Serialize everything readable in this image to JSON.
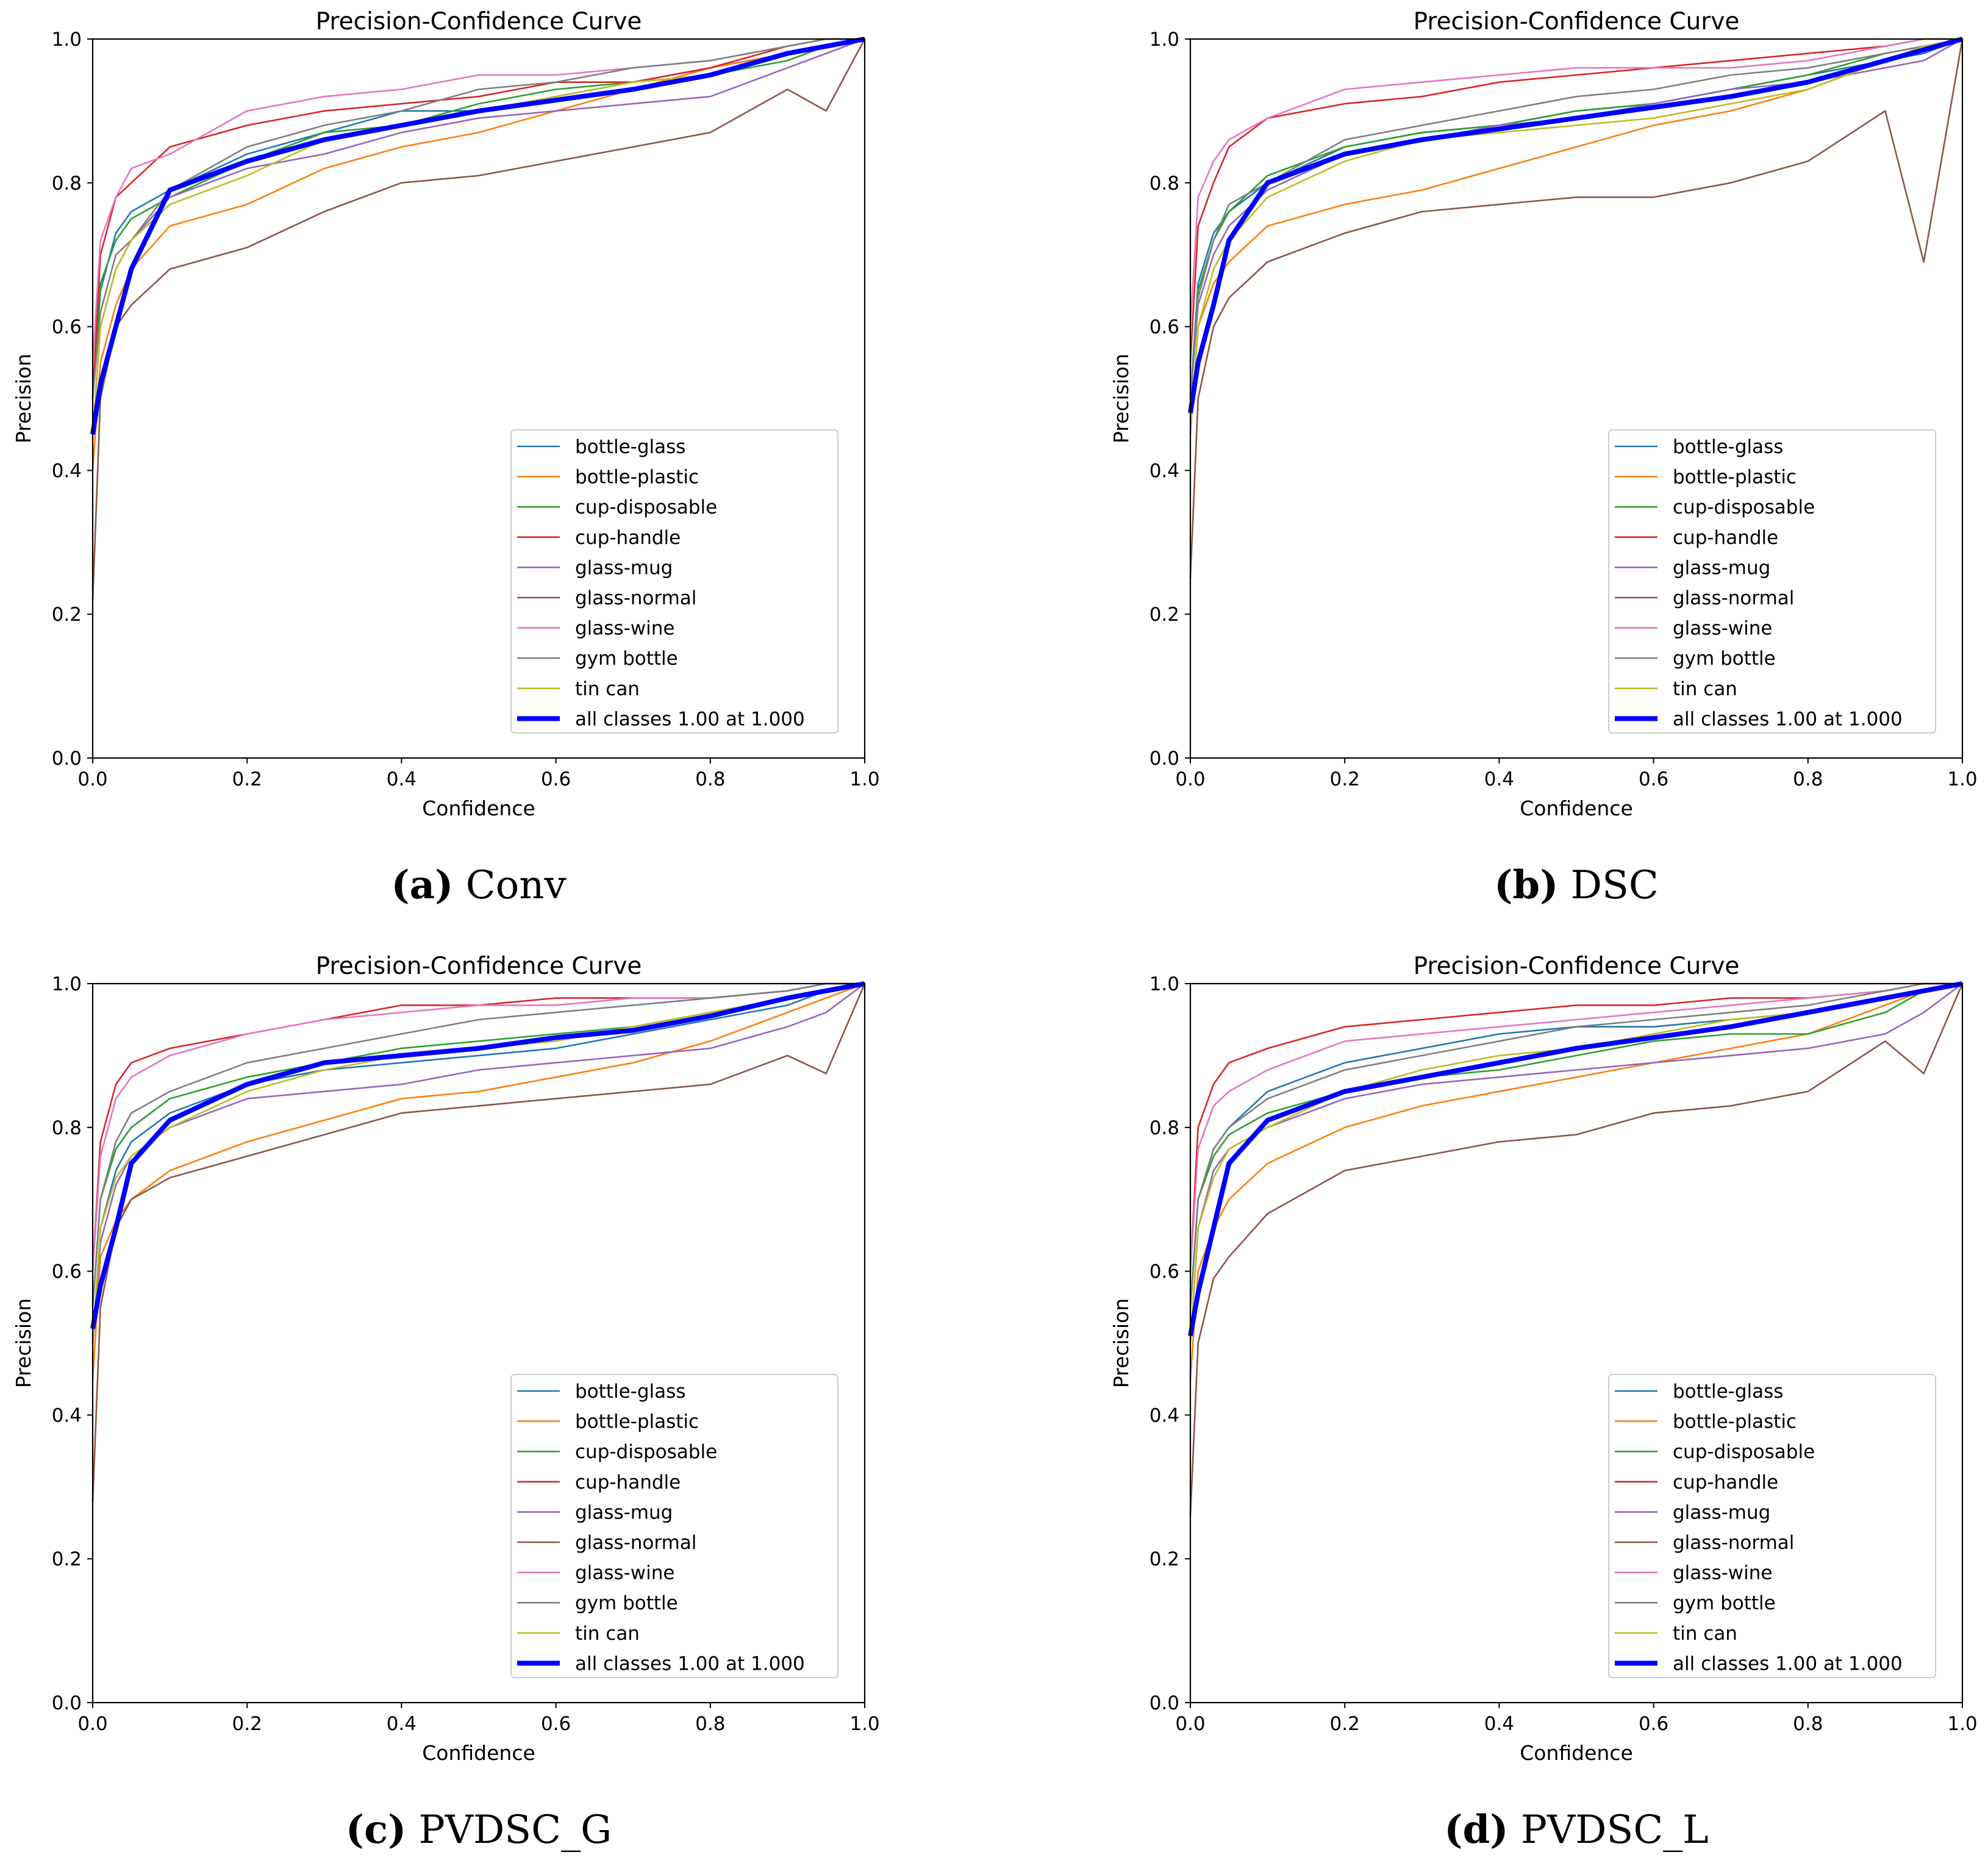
{
  "chart_data": {
    "type": "line",
    "legend_placement": "lower-right",
    "x": [
      0,
      0.01,
      0.03,
      0.05,
      0.1,
      0.2,
      0.3,
      0.4,
      0.5,
      0.6,
      0.7,
      0.8,
      0.9,
      0.95,
      1.0
    ],
    "xticks": [
      "0.0",
      "0.2",
      "0.4",
      "0.6",
      "0.8",
      "1.0"
    ],
    "yticks": [
      "0.0",
      "0.2",
      "0.4",
      "0.6",
      "0.8",
      "1.0"
    ],
    "colors": {
      "bottle-glass": "#1f77b4",
      "bottle-plastic": "#ff7f0e",
      "cup-disposable": "#2ca02c",
      "cup-handle": "#d62728",
      "glass-mug": "#9467bd",
      "glass-normal": "#8c564b",
      "glass-wine": "#e377c2",
      "gym bottle": "#7f7f7f",
      "tin can": "#bcbd22",
      "all classes 1.00 at 1.000": "#0000ff"
    },
    "panels": [
      {
        "title": "Precision-Confidence Curve",
        "xlabel": "Confidence",
        "ylabel": "Precision",
        "xlim": [
          0,
          1
        ],
        "ylim": [
          0,
          1
        ],
        "caption_letter": "(a)",
        "caption_label": "Conv",
        "series": [
          {
            "name": "bottle-glass",
            "values": [
              0.5,
              0.65,
              0.73,
              0.76,
              0.79,
              0.84,
              0.87,
              0.9,
              0.9,
              0.92,
              0.94,
              0.96,
              0.98,
              0.99,
              1.0
            ]
          },
          {
            "name": "bottle-plastic",
            "values": [
              0.4,
              0.55,
              0.63,
              0.68,
              0.74,
              0.77,
              0.82,
              0.85,
              0.87,
              0.9,
              0.93,
              0.96,
              0.98,
              0.99,
              1.0
            ]
          },
          {
            "name": "cup-disposable",
            "values": [
              0.5,
              0.66,
              0.72,
              0.75,
              0.78,
              0.83,
              0.87,
              0.88,
              0.91,
              0.93,
              0.94,
              0.95,
              0.97,
              0.99,
              1.0
            ]
          },
          {
            "name": "cup-handle",
            "values": [
              0.5,
              0.7,
              0.78,
              0.8,
              0.85,
              0.88,
              0.9,
              0.91,
              0.92,
              0.94,
              0.94,
              0.96,
              0.99,
              1.0,
              1.0
            ]
          },
          {
            "name": "glass-mug",
            "values": [
              0.45,
              0.6,
              0.68,
              0.72,
              0.78,
              0.82,
              0.84,
              0.87,
              0.89,
              0.9,
              0.91,
              0.92,
              0.96,
              0.98,
              1.0
            ]
          },
          {
            "name": "glass-normal",
            "values": [
              0.22,
              0.5,
              0.6,
              0.63,
              0.68,
              0.71,
              0.76,
              0.8,
              0.81,
              0.83,
              0.85,
              0.87,
              0.93,
              0.9,
              1.0
            ]
          },
          {
            "name": "glass-wine",
            "values": [
              0.55,
              0.72,
              0.78,
              0.82,
              0.84,
              0.9,
              0.92,
              0.93,
              0.95,
              0.95,
              0.96,
              0.97,
              0.99,
              1.0,
              1.0
            ]
          },
          {
            "name": "gym bottle",
            "values": [
              0.5,
              0.62,
              0.7,
              0.72,
              0.79,
              0.85,
              0.88,
              0.9,
              0.93,
              0.94,
              0.96,
              0.97,
              0.99,
              1.0,
              1.0
            ]
          },
          {
            "name": "tin can",
            "values": [
              0.45,
              0.6,
              0.68,
              0.72,
              0.77,
              0.81,
              0.86,
              0.88,
              0.9,
              0.92,
              0.94,
              0.95,
              0.98,
              0.99,
              1.0
            ]
          },
          {
            "name": "all classes 1.00 at 1.000",
            "values": [
              0.45,
              0.52,
              0.6,
              0.68,
              0.79,
              0.83,
              0.86,
              0.88,
              0.9,
              0.915,
              0.93,
              0.95,
              0.98,
              0.99,
              1.0
            ]
          }
        ]
      },
      {
        "title": "Precision-Confidence Curve",
        "xlabel": "Confidence",
        "ylabel": "Precision",
        "xlim": [
          0,
          1
        ],
        "ylim": [
          0,
          1
        ],
        "caption_letter": "(b)",
        "caption_label": "DSC",
        "series": [
          {
            "name": "bottle-glass",
            "values": [
              0.5,
              0.66,
              0.73,
              0.76,
              0.8,
              0.85,
              0.87,
              0.88,
              0.9,
              0.91,
              0.93,
              0.95,
              0.97,
              0.98,
              1.0
            ]
          },
          {
            "name": "bottle-plastic",
            "values": [
              0.45,
              0.6,
              0.66,
              0.69,
              0.74,
              0.77,
              0.79,
              0.82,
              0.85,
              0.88,
              0.9,
              0.93,
              0.97,
              0.99,
              1.0
            ]
          },
          {
            "name": "cup-disposable",
            "values": [
              0.5,
              0.65,
              0.72,
              0.76,
              0.81,
              0.85,
              0.87,
              0.88,
              0.9,
              0.91,
              0.93,
              0.95,
              0.98,
              0.99,
              1.0
            ]
          },
          {
            "name": "cup-handle",
            "values": [
              0.55,
              0.74,
              0.8,
              0.85,
              0.89,
              0.91,
              0.92,
              0.94,
              0.95,
              0.96,
              0.97,
              0.98,
              0.99,
              1.0,
              1.0
            ]
          },
          {
            "name": "glass-mug",
            "values": [
              0.5,
              0.63,
              0.7,
              0.74,
              0.79,
              0.84,
              0.86,
              0.88,
              0.89,
              0.91,
              0.93,
              0.94,
              0.96,
              0.97,
              1.0
            ]
          },
          {
            "name": "glass-normal",
            "values": [
              0.25,
              0.5,
              0.6,
              0.64,
              0.69,
              0.73,
              0.76,
              0.77,
              0.78,
              0.78,
              0.8,
              0.83,
              0.9,
              0.69,
              1.0
            ]
          },
          {
            "name": "glass-wine",
            "values": [
              0.6,
              0.78,
              0.83,
              0.86,
              0.89,
              0.93,
              0.94,
              0.95,
              0.96,
              0.96,
              0.96,
              0.97,
              0.99,
              1.0,
              1.0
            ]
          },
          {
            "name": "gym bottle",
            "values": [
              0.5,
              0.64,
              0.72,
              0.77,
              0.8,
              0.86,
              0.88,
              0.9,
              0.92,
              0.93,
              0.95,
              0.96,
              0.98,
              0.99,
              1.0
            ]
          },
          {
            "name": "tin can",
            "values": [
              0.45,
              0.6,
              0.68,
              0.72,
              0.78,
              0.83,
              0.86,
              0.87,
              0.88,
              0.89,
              0.91,
              0.93,
              0.97,
              0.99,
              1.0
            ]
          },
          {
            "name": "all classes 1.00 at 1.000",
            "values": [
              0.48,
              0.55,
              0.63,
              0.72,
              0.8,
              0.84,
              0.86,
              0.875,
              0.89,
              0.905,
              0.92,
              0.94,
              0.97,
              0.985,
              1.0
            ]
          }
        ]
      },
      {
        "title": "Precision-Confidence Curve",
        "xlabel": "Confidence",
        "ylabel": "Precision",
        "xlim": [
          0,
          1
        ],
        "ylim": [
          0,
          1
        ],
        "caption_letter": "(c)",
        "caption_label": "PVDSC_G",
        "series": [
          {
            "name": "bottle-glass",
            "values": [
              0.5,
              0.66,
              0.74,
              0.78,
              0.82,
              0.86,
              0.88,
              0.89,
              0.9,
              0.91,
              0.93,
              0.95,
              0.97,
              0.99,
              1.0
            ]
          },
          {
            "name": "bottle-plastic",
            "values": [
              0.45,
              0.62,
              0.67,
              0.7,
              0.74,
              0.78,
              0.81,
              0.84,
              0.85,
              0.87,
              0.89,
              0.92,
              0.96,
              0.98,
              1.0
            ]
          },
          {
            "name": "cup-disposable",
            "values": [
              0.55,
              0.7,
              0.77,
              0.8,
              0.84,
              0.87,
              0.89,
              0.91,
              0.92,
              0.93,
              0.94,
              0.96,
              0.98,
              0.99,
              1.0
            ]
          },
          {
            "name": "cup-handle",
            "values": [
              0.6,
              0.78,
              0.86,
              0.89,
              0.91,
              0.93,
              0.95,
              0.97,
              0.97,
              0.98,
              0.98,
              0.98,
              0.99,
              1.0,
              1.0
            ]
          },
          {
            "name": "glass-mug",
            "values": [
              0.5,
              0.64,
              0.72,
              0.76,
              0.8,
              0.84,
              0.85,
              0.86,
              0.88,
              0.89,
              0.9,
              0.91,
              0.94,
              0.96,
              1.0
            ]
          },
          {
            "name": "glass-normal",
            "values": [
              0.28,
              0.55,
              0.66,
              0.7,
              0.73,
              0.76,
              0.79,
              0.82,
              0.83,
              0.84,
              0.85,
              0.86,
              0.9,
              0.875,
              1.0
            ]
          },
          {
            "name": "glass-wine",
            "values": [
              0.6,
              0.76,
              0.84,
              0.87,
              0.9,
              0.93,
              0.95,
              0.96,
              0.97,
              0.97,
              0.98,
              0.98,
              0.99,
              1.0,
              1.0
            ]
          },
          {
            "name": "gym bottle",
            "values": [
              0.55,
              0.7,
              0.78,
              0.82,
              0.85,
              0.89,
              0.91,
              0.93,
              0.95,
              0.96,
              0.97,
              0.98,
              0.99,
              1.0,
              1.0
            ]
          },
          {
            "name": "tin can",
            "values": [
              0.5,
              0.66,
              0.73,
              0.76,
              0.8,
              0.85,
              0.88,
              0.9,
              0.91,
              0.92,
              0.94,
              0.96,
              0.98,
              0.99,
              1.0
            ]
          },
          {
            "name": "all classes 1.00 at 1.000",
            "values": [
              0.52,
              0.58,
              0.66,
              0.75,
              0.81,
              0.86,
              0.89,
              0.9,
              0.91,
              0.925,
              0.935,
              0.955,
              0.98,
              0.99,
              1.0
            ]
          }
        ]
      },
      {
        "title": "Precision-Confidence Curve",
        "xlabel": "Confidence",
        "ylabel": "Precision",
        "xlim": [
          0,
          1
        ],
        "ylim": [
          0,
          1
        ],
        "caption_letter": "(d)",
        "caption_label": "PVDSC_L",
        "series": [
          {
            "name": "bottle-glass",
            "values": [
              0.55,
              0.7,
              0.77,
              0.8,
              0.85,
              0.89,
              0.91,
              0.93,
              0.94,
              0.94,
              0.95,
              0.96,
              0.98,
              0.99,
              1.0
            ]
          },
          {
            "name": "bottle-plastic",
            "values": [
              0.45,
              0.6,
              0.66,
              0.7,
              0.75,
              0.8,
              0.83,
              0.85,
              0.87,
              0.89,
              0.91,
              0.93,
              0.97,
              0.99,
              1.0
            ]
          },
          {
            "name": "cup-disposable",
            "values": [
              0.55,
              0.7,
              0.76,
              0.79,
              0.82,
              0.85,
              0.87,
              0.88,
              0.9,
              0.92,
              0.93,
              0.93,
              0.96,
              0.99,
              1.0
            ]
          },
          {
            "name": "cup-handle",
            "values": [
              0.6,
              0.8,
              0.86,
              0.89,
              0.91,
              0.94,
              0.95,
              0.96,
              0.97,
              0.97,
              0.98,
              0.98,
              0.99,
              1.0,
              1.0
            ]
          },
          {
            "name": "glass-mug",
            "values": [
              0.5,
              0.66,
              0.74,
              0.77,
              0.8,
              0.84,
              0.86,
              0.87,
              0.88,
              0.89,
              0.9,
              0.91,
              0.93,
              0.96,
              1.0
            ]
          },
          {
            "name": "glass-normal",
            "values": [
              0.26,
              0.5,
              0.59,
              0.62,
              0.68,
              0.74,
              0.76,
              0.78,
              0.79,
              0.82,
              0.83,
              0.85,
              0.92,
              0.875,
              1.0
            ]
          },
          {
            "name": "glass-wine",
            "values": [
              0.6,
              0.77,
              0.83,
              0.85,
              0.88,
              0.92,
              0.93,
              0.94,
              0.95,
              0.96,
              0.97,
              0.98,
              0.99,
              1.0,
              1.0
            ]
          },
          {
            "name": "gym bottle",
            "values": [
              0.55,
              0.7,
              0.77,
              0.8,
              0.84,
              0.88,
              0.9,
              0.92,
              0.94,
              0.95,
              0.96,
              0.97,
              0.99,
              1.0,
              1.0
            ]
          },
          {
            "name": "tin can",
            "values": [
              0.5,
              0.66,
              0.73,
              0.77,
              0.8,
              0.85,
              0.88,
              0.9,
              0.91,
              0.93,
              0.95,
              0.96,
              0.98,
              0.99,
              1.0
            ]
          },
          {
            "name": "all classes 1.00 at 1.000",
            "values": [
              0.51,
              0.57,
              0.66,
              0.75,
              0.81,
              0.85,
              0.87,
              0.89,
              0.91,
              0.925,
              0.94,
              0.96,
              0.98,
              0.99,
              1.0
            ]
          }
        ]
      }
    ]
  }
}
